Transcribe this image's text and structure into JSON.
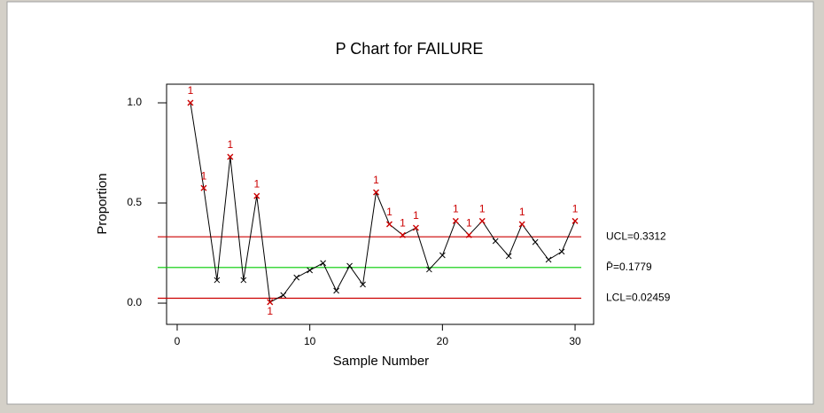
{
  "chart_data": {
    "type": "p-chart",
    "title": "P Chart for FAILURE",
    "x_label": "Sample Number",
    "y_label": "Proportion",
    "x": [
      1,
      2,
      3,
      4,
      5,
      6,
      7,
      8,
      9,
      10,
      11,
      12,
      13,
      14,
      15,
      16,
      17,
      18,
      19,
      20,
      21,
      22,
      23,
      24,
      25,
      26,
      27,
      28,
      29,
      30
    ],
    "values": [
      1.0,
      0.575,
      0.115,
      0.73,
      0.115,
      0.535,
      0.005,
      0.04,
      0.128,
      0.164,
      0.2,
      0.062,
      0.186,
      0.093,
      0.553,
      0.394,
      0.34,
      0.376,
      0.168,
      0.239,
      0.41,
      0.34,
      0.41,
      0.31,
      0.235,
      0.394,
      0.305,
      0.217,
      0.257,
      0.41
    ],
    "test_labels": [
      "1",
      "1",
      null,
      "1",
      null,
      "1",
      "1",
      null,
      null,
      null,
      null,
      null,
      null,
      null,
      "1",
      "1",
      "1",
      "1",
      null,
      null,
      "1",
      "1",
      "1",
      null,
      null,
      "1",
      null,
      null,
      null,
      "1"
    ],
    "color": "#000000",
    "flag_color": "#cc0000",
    "control_lines": [
      {
        "value": 0.3312,
        "label": "UCL=0.3312",
        "color": "#cc0000"
      },
      {
        "value": 0.1779,
        "label": "P̄=0.1779",
        "color": "#00cc00"
      },
      {
        "value": 0.02459,
        "label": "LCL=0.02459",
        "color": "#cc0000"
      }
    ],
    "xlim": [
      -0.8,
      31.4
    ],
    "ylim": [
      -0.106,
      1.093
    ],
    "xticks": [
      0,
      10,
      20,
      30
    ],
    "yticks": [
      {
        "value": 0,
        "label": "0.0"
      },
      {
        "value": 0.5,
        "label": "0.5"
      },
      {
        "value": 1,
        "label": "1.0"
      }
    ]
  }
}
